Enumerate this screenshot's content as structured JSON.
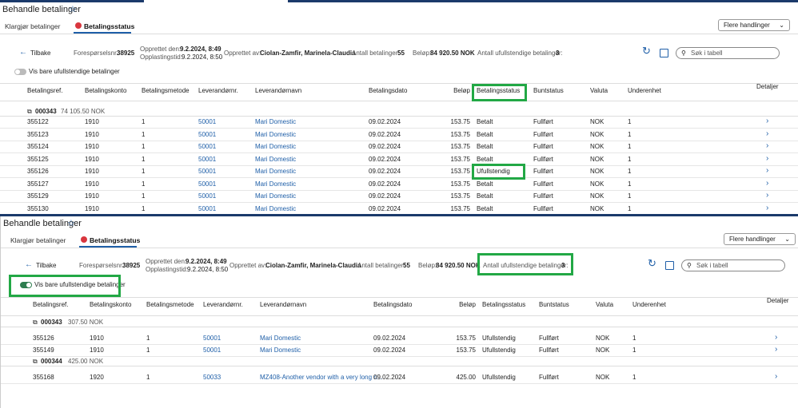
{
  "panels": [
    {
      "title": "Behandle betalinger",
      "tabs": [
        "Klargjør betalinger",
        "Betalingsstatus"
      ],
      "more_actions": "Flere handlinger",
      "back": "Tilbake",
      "request_label": "Forespørselsnr.:",
      "request_value": "38925",
      "created_label": "Opprettet den:",
      "created_value": "9.2.2024, 8:49",
      "upload_label": "Opplastingstid:",
      "upload_value": "9.2.2024, 8:50",
      "created_by_label": "Opprettet av:",
      "created_by_value": "Ciolan-Zamfir, Marinela-Claudia",
      "count_label": "Antall betalinger:",
      "count_value": "55",
      "amount_label": "Beløp:",
      "amount_value": "84 920.50 NOK",
      "incomplete_label": "Antall ufullstendige betalinger:",
      "incomplete_value": "3",
      "search_placeholder": "Søk i tabell",
      "toggle_label": "Vis bare ufullstendige betalinger",
      "columns": [
        "Betalingsref.",
        "Betalingskonto",
        "Betalingsmetode",
        "Leverandørnr.",
        "Leverandørnavn",
        "Betalingsdato",
        "Beløp",
        "Betalingsstatus",
        "Buntstatus",
        "Valuta",
        "Underenhet",
        "Detaljer"
      ],
      "groups": [
        {
          "id": "000343",
          "amount": "74 105.50 NOK",
          "rows": [
            [
              "355122",
              "1910",
              "1",
              "50001",
              "Mari Domestic",
              "09.02.2024",
              "153.75",
              "Betalt",
              "Fullført",
              "NOK",
              "1"
            ],
            [
              "355123",
              "1910",
              "1",
              "50001",
              "Mari Domestic",
              "09.02.2024",
              "153.75",
              "Betalt",
              "Fullført",
              "NOK",
              "1"
            ],
            [
              "355124",
              "1910",
              "1",
              "50001",
              "Mari Domestic",
              "09.02.2024",
              "153.75",
              "Betalt",
              "Fullført",
              "NOK",
              "1"
            ],
            [
              "355125",
              "1910",
              "1",
              "50001",
              "Mari Domestic",
              "09.02.2024",
              "153.75",
              "Betalt",
              "Fullført",
              "NOK",
              "1"
            ],
            [
              "355126",
              "1910",
              "1",
              "50001",
              "Mari Domestic",
              "09.02.2024",
              "153.75",
              "Ufullstendig",
              "Fullført",
              "NOK",
              "1"
            ],
            [
              "355127",
              "1910",
              "1",
              "50001",
              "Mari Domestic",
              "09.02.2024",
              "153.75",
              "Betalt",
              "Fullført",
              "NOK",
              "1"
            ],
            [
              "355129",
              "1910",
              "1",
              "50001",
              "Mari Domestic",
              "09.02.2024",
              "153.75",
              "Betalt",
              "Fullført",
              "NOK",
              "1"
            ],
            [
              "355130",
              "1910",
              "1",
              "50001",
              "Mari Domestic",
              "09.02.2024",
              "153.75",
              "Betalt",
              "Fullført",
              "NOK",
              "1"
            ]
          ]
        }
      ]
    },
    {
      "title": "Behandle betalinger",
      "tabs": [
        "Klargjør betalinger",
        "Betalingsstatus"
      ],
      "more_actions": "Flere handlinger",
      "back": "Tilbake",
      "request_label": "Forespørselsnr.:",
      "request_value": "38925",
      "created_label": "Opprettet den:",
      "created_value": "9.2.2024, 8:49",
      "upload_label": "Opplastingstid:",
      "upload_value": "9.2.2024, 8:50",
      "created_by_label": "Opprettet av:",
      "created_by_value": "Ciolan-Zamfir, Marinela-Claudia",
      "count_label": "Antall betalinger:",
      "count_value": "55",
      "amount_label": "Beløp:",
      "amount_value": "84 920.50 NOK",
      "incomplete_label": "Antall ufullstendige betalinger:",
      "incomplete_value": "3",
      "search_placeholder": "Søk i tabell",
      "toggle_label": "Vis bare ufullstendige betalinger",
      "columns": [
        "Betalingsref.",
        "Betalingskonto",
        "Betalingsmetode",
        "Leverandørnr.",
        "Leverandørnavn",
        "Betalingsdato",
        "Beløp",
        "Betalingsstatus",
        "Buntstatus",
        "Valuta",
        "Underenhet",
        "Detaljer"
      ],
      "groups": [
        {
          "id": "000343",
          "amount": "307.50 NOK",
          "rows": [
            [
              "355126",
              "1910",
              "1",
              "50001",
              "Mari Domestic",
              "09.02.2024",
              "153.75",
              "Ufullstendig",
              "Fullført",
              "NOK",
              "1"
            ],
            [
              "355149",
              "1910",
              "1",
              "50001",
              "Mari Domestic",
              "09.02.2024",
              "153.75",
              "Ufullstendig",
              "Fullført",
              "NOK",
              "1"
            ]
          ]
        },
        {
          "id": "000344",
          "amount": "425.00 NOK",
          "rows": [
            [
              "355168",
              "1920",
              "1",
              "50033",
              "MZ408-Another vendor with a very long n...",
              "09.02.2024",
              "425.00",
              "Ufullstendig",
              "Fullført",
              "NOK",
              "1"
            ]
          ]
        }
      ]
    }
  ]
}
